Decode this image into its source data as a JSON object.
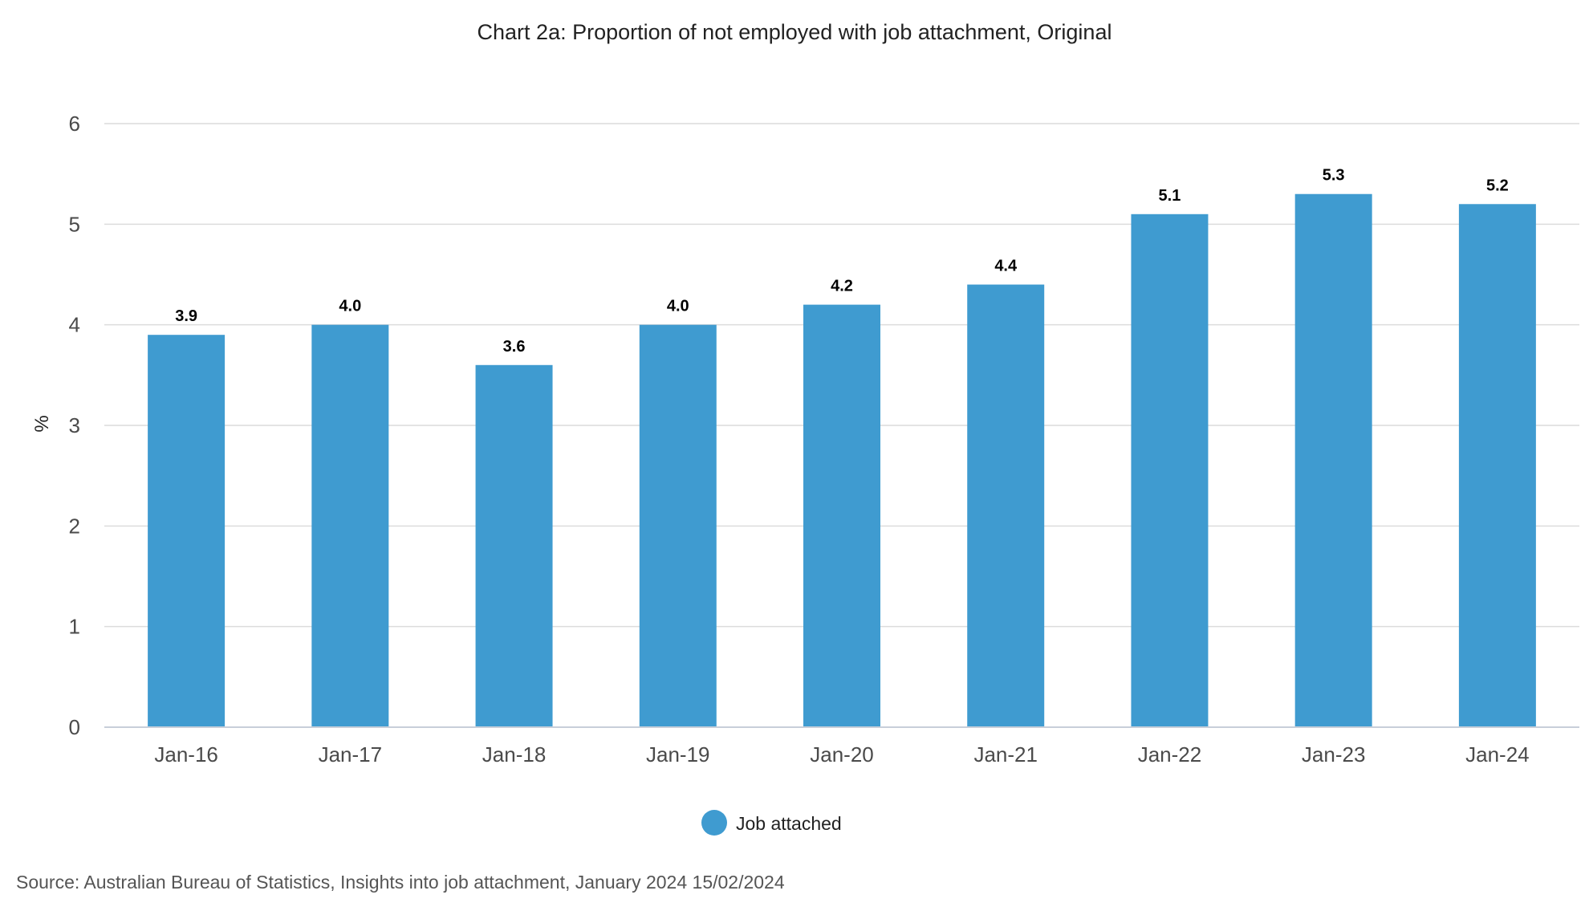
{
  "chart_data": {
    "type": "bar",
    "title": "Chart 2a: Proportion of not employed with job attachment, Original",
    "xlabel": "",
    "ylabel": "%",
    "categories": [
      "Jan-16",
      "Jan-17",
      "Jan-18",
      "Jan-19",
      "Jan-20",
      "Jan-21",
      "Jan-22",
      "Jan-23",
      "Jan-24"
    ],
    "series": [
      {
        "name": "Job attached",
        "values": [
          3.9,
          4.0,
          3.6,
          4.0,
          4.2,
          4.4,
          5.1,
          5.3,
          5.2
        ],
        "data_labels": [
          "3.9",
          "4.0",
          "3.6",
          "4.0",
          "4.2",
          "4.4",
          "5.1",
          "5.3",
          "5.2"
        ],
        "color": "#3f9bd0"
      }
    ],
    "ylim": [
      0,
      6
    ],
    "yticks": [
      "0",
      "1",
      "2",
      "3",
      "4",
      "5",
      "6"
    ],
    "grid": true,
    "legend_position": "bottom-center",
    "source": "Source: Australian Bureau of Statistics, Insights into job attachment, January 2024 15/02/2024"
  }
}
